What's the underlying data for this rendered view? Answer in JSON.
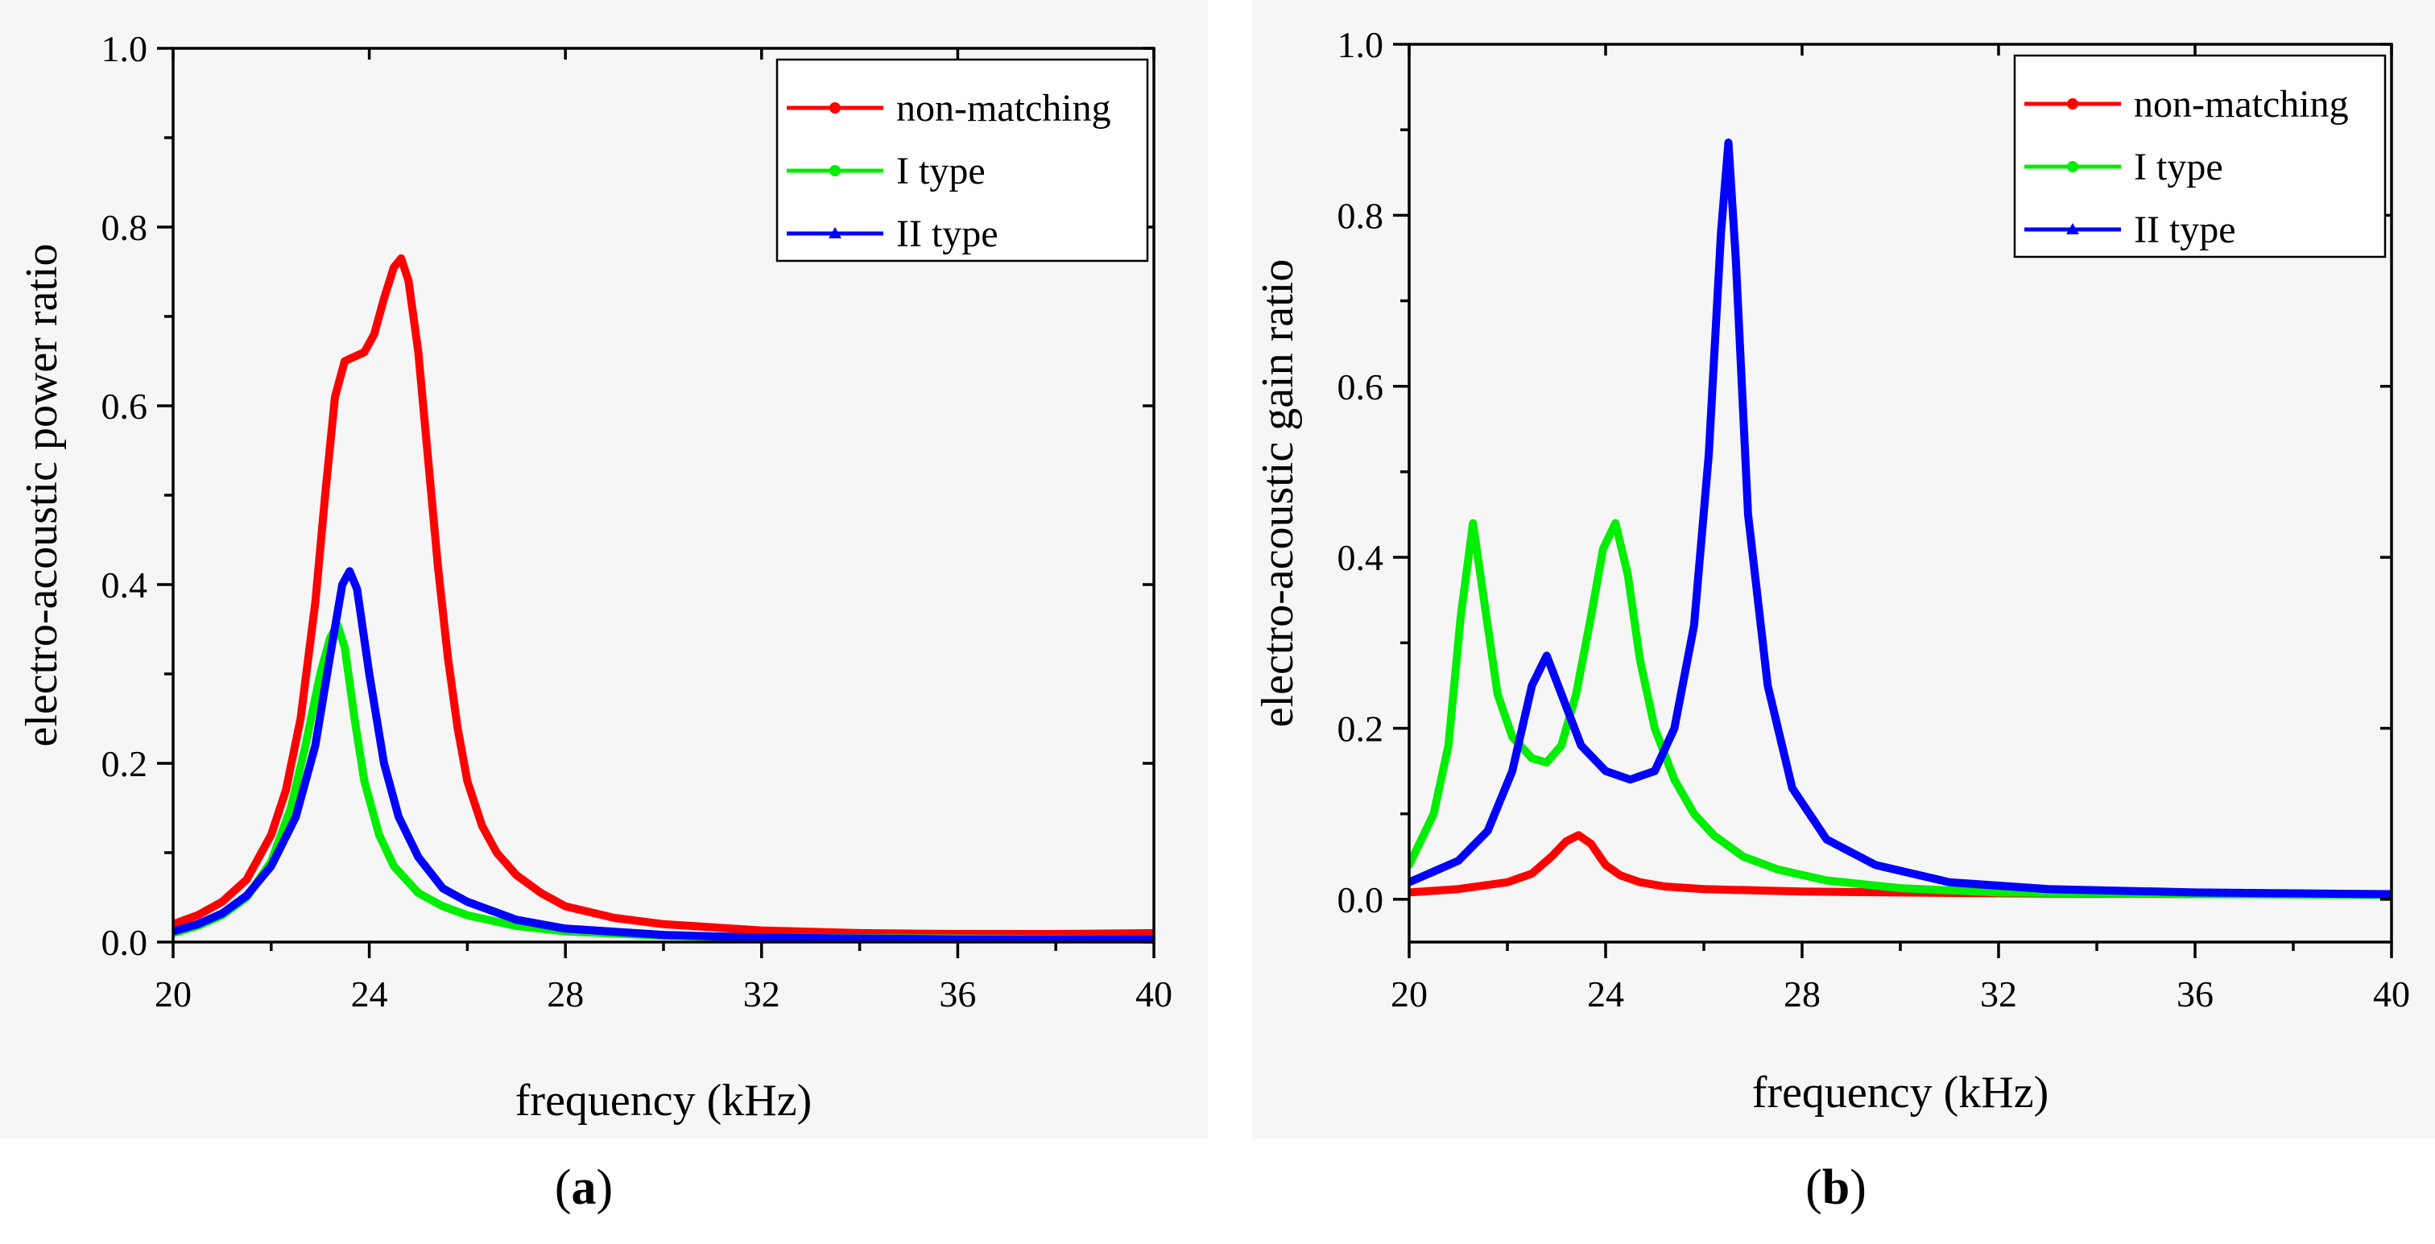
{
  "chart_data": [
    {
      "type": "line",
      "panel_label": "(a)",
      "panel_label_bold": "a",
      "xlabel": "frequency (kHz)",
      "ylabel": "electro-acoustic power ratio",
      "xlim": [
        20,
        40
      ],
      "ylim": [
        0.0,
        1.0
      ],
      "x_ticks": [
        20,
        24,
        28,
        32,
        36,
        40
      ],
      "x_tick_labels": [
        "20",
        "24",
        "28",
        "32",
        "36",
        "40"
      ],
      "y_ticks": [
        0.0,
        0.2,
        0.4,
        0.6,
        0.8,
        1.0
      ],
      "y_tick_labels": [
        "0.0",
        "0.2",
        "0.4",
        "0.6",
        "0.8",
        "1.0"
      ],
      "legend_position": "top-right",
      "series": [
        {
          "name": "non-matching",
          "color": "#ff0000",
          "marker": "circle",
          "x": [
            20,
            20.5,
            21,
            21.5,
            22,
            22.3,
            22.6,
            22.9,
            23.1,
            23.3,
            23.5,
            23.7,
            23.9,
            24.1,
            24.3,
            24.5,
            24.65,
            24.8,
            25,
            25.2,
            25.4,
            25.6,
            25.8,
            26,
            26.3,
            26.6,
            27,
            27.5,
            28,
            29,
            30,
            32,
            34,
            36,
            38,
            40
          ],
          "y": [
            0.02,
            0.03,
            0.045,
            0.07,
            0.12,
            0.17,
            0.25,
            0.38,
            0.5,
            0.61,
            0.65,
            0.655,
            0.66,
            0.68,
            0.72,
            0.755,
            0.765,
            0.74,
            0.66,
            0.54,
            0.42,
            0.32,
            0.24,
            0.18,
            0.13,
            0.1,
            0.075,
            0.055,
            0.04,
            0.027,
            0.02,
            0.013,
            0.01,
            0.009,
            0.009,
            0.01
          ]
        },
        {
          "name": "I type",
          "color": "#00ee00",
          "marker": "circle",
          "x": [
            20,
            20.5,
            21,
            21.5,
            22,
            22.4,
            22.7,
            23,
            23.2,
            23.35,
            23.5,
            23.7,
            23.9,
            24.2,
            24.5,
            25,
            25.5,
            26,
            27,
            28,
            30,
            32,
            36,
            40
          ],
          "y": [
            0.01,
            0.018,
            0.03,
            0.05,
            0.09,
            0.15,
            0.22,
            0.3,
            0.34,
            0.355,
            0.33,
            0.25,
            0.18,
            0.12,
            0.085,
            0.055,
            0.04,
            0.03,
            0.018,
            0.012,
            0.007,
            0.005,
            0.004,
            0.003
          ]
        },
        {
          "name": "II type",
          "color": "#0000ff",
          "marker": "triangle",
          "x": [
            20,
            20.5,
            21,
            21.5,
            22,
            22.5,
            22.9,
            23.2,
            23.45,
            23.6,
            23.75,
            24,
            24.3,
            24.6,
            25,
            25.5,
            26,
            27,
            28,
            30,
            32,
            36,
            40
          ],
          "y": [
            0.012,
            0.02,
            0.032,
            0.052,
            0.085,
            0.14,
            0.22,
            0.32,
            0.4,
            0.415,
            0.395,
            0.3,
            0.2,
            0.14,
            0.095,
            0.06,
            0.045,
            0.025,
            0.015,
            0.008,
            0.005,
            0.003,
            0.003
          ]
        }
      ]
    },
    {
      "type": "line",
      "panel_label": "(b)",
      "panel_label_bold": "b",
      "xlabel": "frequency (kHz)",
      "ylabel": "electro-acoustic gain ratio",
      "xlim": [
        20,
        40
      ],
      "ylim": [
        -0.05,
        1.0
      ],
      "x_ticks": [
        20,
        24,
        28,
        32,
        36,
        40
      ],
      "x_tick_labels": [
        "20",
        "24",
        "28",
        "32",
        "36",
        "40"
      ],
      "y_ticks": [
        0.0,
        0.2,
        0.4,
        0.6,
        0.8,
        1.0
      ],
      "y_tick_labels": [
        "0.0",
        "0.2",
        "0.4",
        "0.6",
        "0.8",
        "1.0"
      ],
      "legend_position": "top-right",
      "series": [
        {
          "name": "non-matching",
          "color": "#ff0000",
          "marker": "circle",
          "x": [
            20,
            21,
            22,
            22.5,
            22.9,
            23.2,
            23.45,
            23.7,
            24,
            24.3,
            24.7,
            25.2,
            26,
            28,
            32,
            36,
            40
          ],
          "y": [
            0.008,
            0.012,
            0.02,
            0.03,
            0.05,
            0.068,
            0.075,
            0.065,
            0.04,
            0.028,
            0.02,
            0.015,
            0.012,
            0.009,
            0.007,
            0.006,
            0.006
          ]
        },
        {
          "name": "I type",
          "color": "#00ee00",
          "marker": "circle",
          "x": [
            20,
            20.5,
            20.8,
            21.05,
            21.3,
            21.55,
            21.8,
            22.1,
            22.5,
            22.8,
            23.1,
            23.4,
            23.7,
            23.95,
            24.2,
            24.45,
            24.7,
            25,
            25.4,
            25.8,
            26.2,
            26.8,
            27.5,
            28.5,
            30,
            32,
            36,
            40
          ],
          "y": [
            0.04,
            0.1,
            0.18,
            0.33,
            0.44,
            0.34,
            0.24,
            0.19,
            0.165,
            0.16,
            0.18,
            0.24,
            0.33,
            0.41,
            0.44,
            0.38,
            0.28,
            0.2,
            0.14,
            0.1,
            0.075,
            0.05,
            0.035,
            0.022,
            0.013,
            0.008,
            0.006,
            0.005
          ]
        },
        {
          "name": "II type",
          "color": "#0000ff",
          "marker": "triangle",
          "x": [
            20,
            21,
            21.6,
            22.1,
            22.5,
            22.8,
            23.1,
            23.5,
            24,
            24.5,
            25,
            25.4,
            25.8,
            26.1,
            26.35,
            26.5,
            26.65,
            26.9,
            27.3,
            27.8,
            28.5,
            29.5,
            31,
            33,
            36,
            40
          ],
          "y": [
            0.02,
            0.045,
            0.08,
            0.15,
            0.25,
            0.285,
            0.24,
            0.18,
            0.15,
            0.14,
            0.15,
            0.2,
            0.32,
            0.52,
            0.78,
            0.885,
            0.75,
            0.45,
            0.25,
            0.13,
            0.07,
            0.04,
            0.02,
            0.012,
            0.008,
            0.006
          ]
        }
      ]
    }
  ]
}
